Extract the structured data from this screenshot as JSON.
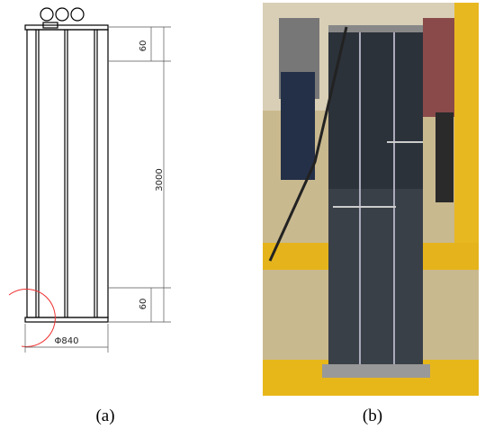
{
  "drawing": {
    "dimensions": [
      "60",
      "3000",
      "60"
    ],
    "diameter": "Φ840"
  },
  "captions": [
    "(a)",
    "(b)"
  ]
}
